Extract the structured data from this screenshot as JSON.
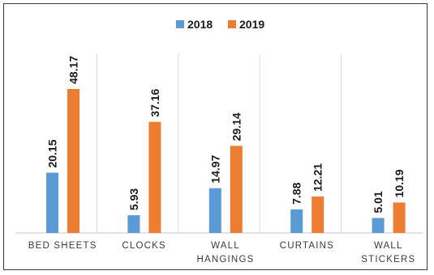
{
  "chart_data": {
    "type": "bar",
    "categories": [
      [
        "BED SHEETS"
      ],
      [
        "CLOCKS"
      ],
      [
        "WALL",
        "HANGINGS"
      ],
      [
        "CURTAINS"
      ],
      [
        "WALL",
        "STICKERS"
      ]
    ],
    "series": [
      {
        "name": "2018",
        "color": "#5b9bd5",
        "values": [
          20.15,
          5.93,
          14.97,
          7.88,
          5.01
        ],
        "labels": [
          "20.15",
          "5.93",
          "14.97",
          "7.88",
          "5.01"
        ]
      },
      {
        "name": "2019",
        "color": "#ed7d31",
        "values": [
          48.17,
          37.16,
          29.14,
          12.21,
          10.19
        ],
        "labels": [
          "48.17",
          "37.16",
          "29.14",
          "12.21",
          "10.19"
        ]
      }
    ],
    "title": "",
    "xlabel": "",
    "ylabel": "",
    "ylim": [
      0,
      55
    ],
    "grid": "vertical",
    "legend": "top-center",
    "data_label_orientation": "vertical"
  }
}
